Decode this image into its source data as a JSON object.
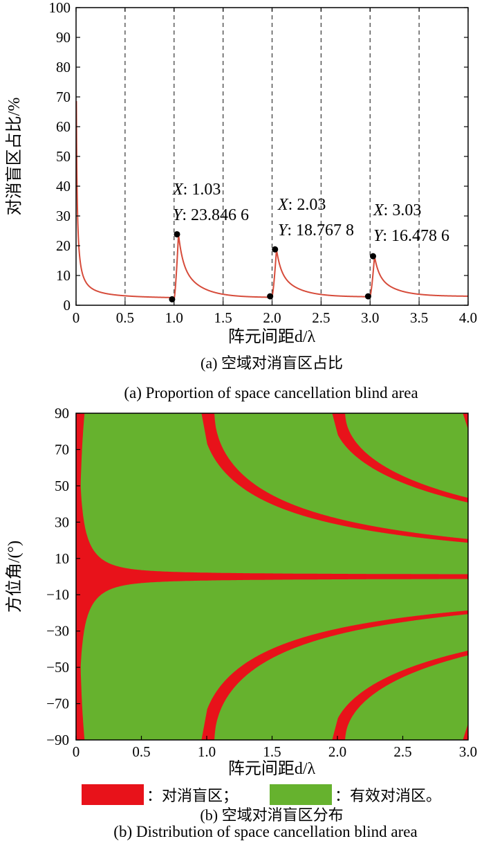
{
  "chart_data": [
    {
      "type": "line",
      "xlabel": "阵元间距d/λ",
      "ylabel": "对消盲区占比/%",
      "xlim": [
        0,
        4.0
      ],
      "ylim": [
        0,
        100
      ],
      "xticks": [
        "0",
        "0.5",
        "1.0",
        "1.5",
        "2.0",
        "2.5",
        "3.0",
        "3.5",
        "4.0"
      ],
      "yticks": [
        "0",
        "10",
        "20",
        "30",
        "40",
        "50",
        "60",
        "70",
        "80",
        "90",
        "100"
      ],
      "vlines": [
        0.5,
        1.0,
        1.5,
        2.0,
        2.5,
        3.0,
        3.5
      ],
      "line_color": "#d64b3a",
      "markers": [
        {
          "x": 0.98,
          "y": 2.0
        },
        {
          "x": 1.03,
          "y": 23.8466
        },
        {
          "x": 1.98,
          "y": 3.0
        },
        {
          "x": 2.03,
          "y": 18.7678
        },
        {
          "x": 2.98,
          "y": 3.0
        },
        {
          "x": 3.03,
          "y": 16.4786
        }
      ],
      "annotations": [
        {
          "x_label": "X",
          "x_value": ": 1.03",
          "y_label": "Y",
          "y_value": ": 23.846 6"
        },
        {
          "x_label": "X",
          "x_value": ": 2.03",
          "y_label": "Y",
          "y_value": ": 18.767 8"
        },
        {
          "x_label": "X",
          "x_value": ": 3.03",
          "y_label": "Y",
          "y_value": ": 16.478 6"
        }
      ],
      "caption_cn": "(a) 空域对消盲区占比",
      "caption_en": "(a) Proportion of space cancellation blind area"
    },
    {
      "type": "heatmap",
      "xlabel": "阵元间距d/λ",
      "ylabel": "方位角/(°)",
      "xlim": [
        0,
        3.0
      ],
      "ylim": [
        -90,
        90
      ],
      "xticks": [
        "0",
        "0.5",
        "1.0",
        "1.5",
        "2.0",
        "2.5",
        "3.0"
      ],
      "yticks": [
        "90",
        "70",
        "50",
        "30",
        "10",
        "−10",
        "−30",
        "−50",
        "−70",
        "−90"
      ],
      "blind_color": "#e8121a",
      "effective_color": "#66b22e",
      "legend": [
        {
          "label": "：对消盲区；",
          "color": "#e8121a"
        },
        {
          "label": "：有效对消区。",
          "color": "#66b22e"
        }
      ],
      "caption_cn": "(b) 空域对消盲区分布",
      "caption_en": "(b) Distribution of space cancellation blind area"
    }
  ]
}
